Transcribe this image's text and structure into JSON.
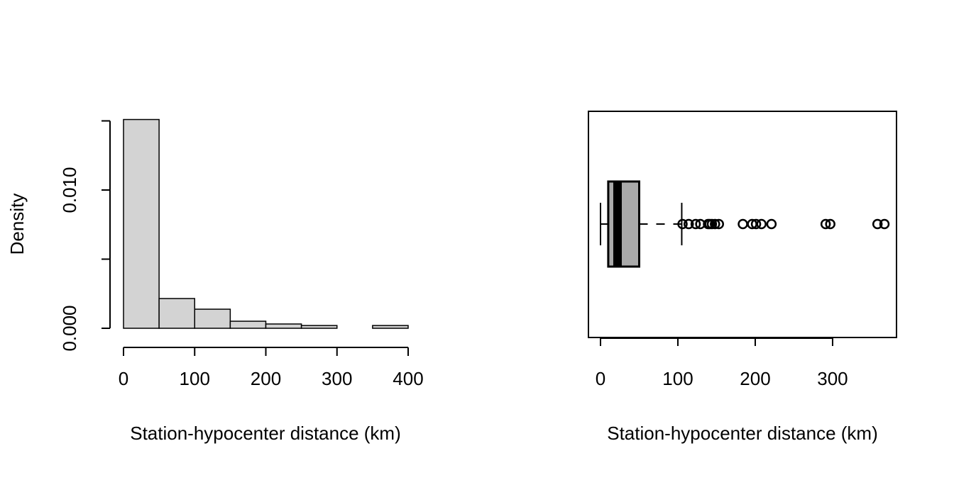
{
  "chart_data": [
    {
      "type": "histogram",
      "xlabel": "Station-hypocenter distance (km)",
      "ylabel": "Density",
      "bins": [
        0,
        50,
        100,
        150,
        200,
        250,
        300,
        350,
        400
      ],
      "values": [
        0.0151,
        0.00215,
        0.00138,
        0.00051,
        0.00031,
        0.0002,
        0,
        0.0002
      ],
      "color": "#d3d3d3",
      "xlim": [
        0,
        400
      ],
      "xticks": [
        0,
        100,
        200,
        300,
        400
      ],
      "ylim": [
        0,
        0.015
      ],
      "yticks": [
        {
          "value": 0,
          "label": "0.000"
        },
        {
          "value": 0.01,
          "label": "0.010"
        }
      ],
      "yminor_ticks": [
        0.005,
        0.015
      ]
    },
    {
      "type": "boxplot",
      "xlabel": "Station-hypocenter distance (km)",
      "whisker_low": 0,
      "q1": 10,
      "median": 22,
      "q3": 50,
      "whisker_high": 105,
      "outliers": [
        106,
        114,
        123,
        129,
        139,
        141,
        144,
        148,
        153,
        184,
        196,
        201,
        208,
        221,
        291,
        297,
        358,
        367
      ],
      "color": "#aaaaaa",
      "xlim": [
        -15.6,
        382.6
      ],
      "xticks": [
        0,
        100,
        200,
        300
      ]
    }
  ]
}
